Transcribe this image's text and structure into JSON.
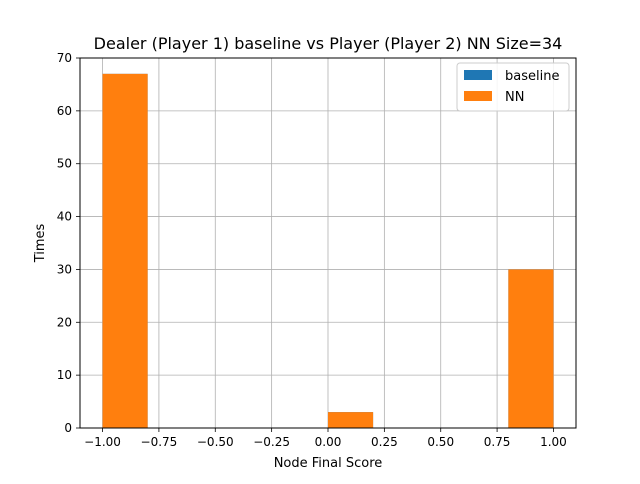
{
  "chart_data": {
    "type": "bar",
    "title": "Dealer (Player 1) baseline vs Player (Player 2) NN Size=34",
    "xlabel": "Node Final Score",
    "ylabel": "Times",
    "xlim": [
      -1.1,
      1.1
    ],
    "ylim": [
      0,
      70
    ],
    "x_ticks": [
      -1.0,
      -0.75,
      -0.5,
      -0.25,
      0.0,
      0.25,
      0.5,
      0.75,
      1.0
    ],
    "x_tick_labels": [
      "−1.00",
      "−0.75",
      "−0.50",
      "−0.25",
      "0.00",
      "0.25",
      "0.50",
      "0.75",
      "1.00"
    ],
    "y_ticks": [
      0,
      10,
      20,
      30,
      40,
      50,
      60,
      70
    ],
    "y_tick_labels": [
      "0",
      "10",
      "20",
      "30",
      "40",
      "50",
      "60",
      "70"
    ],
    "grid": true,
    "legend_position": "top-right",
    "series": [
      {
        "name": "baseline",
        "color": "#1f77b4",
        "bins": [
          {
            "x0": -1.0,
            "x1": -0.8,
            "count": 67
          },
          {
            "x0": 0.0,
            "x1": 0.2,
            "count": 3
          },
          {
            "x0": 0.8,
            "x1": 1.0,
            "count": 30
          }
        ]
      },
      {
        "name": "NN",
        "color": "#ff7f0e",
        "bins": [
          {
            "x0": -1.0,
            "x1": -0.8,
            "count": 67
          },
          {
            "x0": 0.0,
            "x1": 0.2,
            "count": 3
          },
          {
            "x0": 0.8,
            "x1": 1.0,
            "count": 30
          }
        ]
      }
    ]
  }
}
